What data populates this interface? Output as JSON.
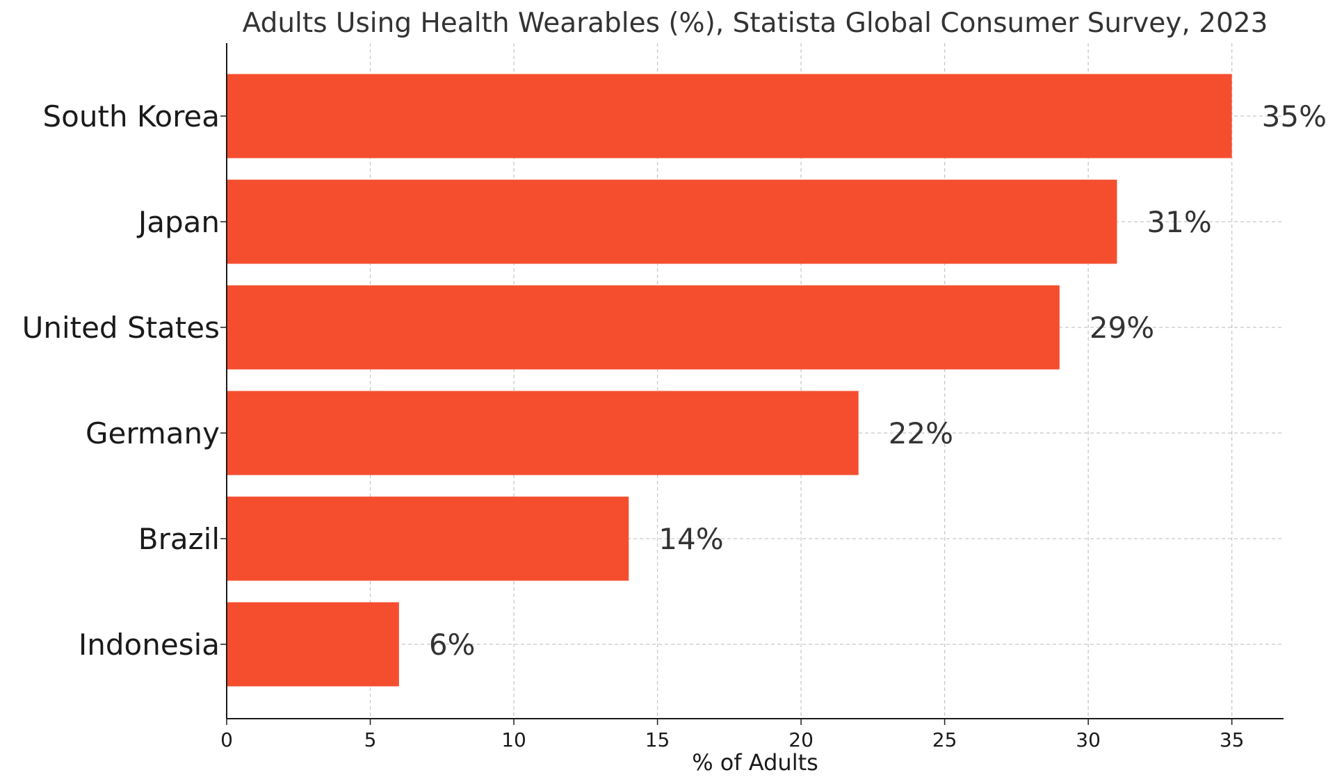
{
  "chart_data": {
    "type": "bar",
    "orientation": "horizontal",
    "title": "Adults Using Health Wearables (%), Statista Global Consumer Survey, 2023",
    "xlabel": "% of Adults",
    "ylabel": "",
    "categories": [
      "South Korea",
      "Japan",
      "United States",
      "Germany",
      "Brazil",
      "Indonesia"
    ],
    "values": [
      35,
      31,
      29,
      22,
      14,
      6
    ],
    "value_labels": [
      "35%",
      "31%",
      "29%",
      "22%",
      "14%",
      "6%"
    ],
    "xlim": [
      0,
      36.8
    ],
    "xticks": [
      0,
      5,
      10,
      15,
      20,
      25,
      30,
      35
    ],
    "grid": true,
    "legend": "none",
    "bar_color": "#f44e2f"
  }
}
